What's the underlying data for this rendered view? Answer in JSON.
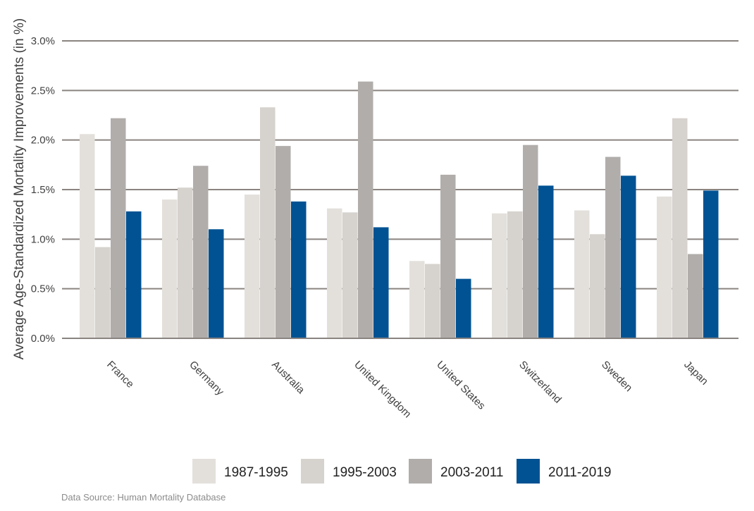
{
  "chart_data": {
    "type": "bar",
    "categories": [
      "France",
      "Germany",
      "Australia",
      "United Kingdom",
      "United States",
      "Switzerland",
      "Sweden",
      "Japan"
    ],
    "series": [
      {
        "name": "1987-1995",
        "color": "#e3e0dc",
        "values": [
          2.06,
          1.4,
          1.45,
          1.31,
          0.78,
          1.26,
          1.29,
          1.43
        ]
      },
      {
        "name": "1995-2003",
        "color": "#d6d2ce",
        "values": [
          0.92,
          1.52,
          2.33,
          1.27,
          0.75,
          1.28,
          1.05,
          2.22
        ]
      },
      {
        "name": "2003-2011",
        "color": "#b1adab",
        "values": [
          2.22,
          1.74,
          1.94,
          2.59,
          1.65,
          1.95,
          1.83,
          0.85
        ]
      },
      {
        "name": "2011-2019",
        "color": "#005293",
        "values": [
          1.28,
          1.1,
          1.38,
          1.12,
          0.6,
          1.54,
          1.64,
          1.49
        ]
      }
    ],
    "ylabel": "Average Age-Standardized Mortality Improvements (in %)",
    "ylim": [
      0,
      3.0
    ],
    "yticks": [
      0,
      0.5,
      1.0,
      1.5,
      2.0,
      2.5,
      3.0
    ],
    "ytick_labels": [
      "0.0%",
      "0.5%",
      "1.0%",
      "1.5%",
      "2.0%",
      "2.5%",
      "3.0%"
    ],
    "grid": true,
    "gridline_color": "#8a8480",
    "legend_position": "bottom",
    "source": "Data Source: Human Mortality Database"
  }
}
